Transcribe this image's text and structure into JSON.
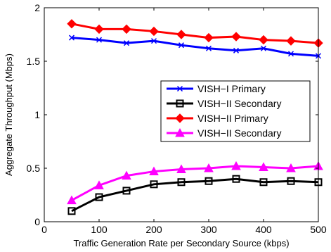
{
  "chart_data": {
    "type": "line",
    "xlabel": "Traffic Generation Rate per Secondary Source (kbps)",
    "ylabel": "Aggregate Throughput (Mbps)",
    "xlim": [
      0,
      500
    ],
    "ylim": [
      0,
      2
    ],
    "x_ticks": [
      0,
      100,
      200,
      300,
      400,
      500
    ],
    "y_ticks": [
      0,
      0.5,
      1,
      1.5,
      2
    ],
    "x_tick_labels": [
      "0",
      "100",
      "200",
      "300",
      "400",
      "500"
    ],
    "y_tick_labels": [
      "0",
      "0.5",
      "1",
      "1.5",
      "2"
    ],
    "grid": false,
    "legend_position": "right",
    "x": [
      50,
      100,
      150,
      200,
      250,
      300,
      350,
      400,
      450,
      500
    ],
    "series": [
      {
        "name": "VISH−I Primary",
        "color": "#0000ff",
        "marker": "x",
        "values": [
          1.72,
          1.7,
          1.67,
          1.69,
          1.65,
          1.62,
          1.6,
          1.62,
          1.57,
          1.55
        ]
      },
      {
        "name": "VISH−II Secondary",
        "color": "#000000",
        "marker": "square",
        "values": [
          0.1,
          0.23,
          0.29,
          0.35,
          0.37,
          0.38,
          0.4,
          0.37,
          0.38,
          0.37
        ]
      },
      {
        "name": "VISH−II Primary",
        "color": "#ff0000",
        "marker": "diamond",
        "values": [
          1.85,
          1.8,
          1.8,
          1.78,
          1.75,
          1.72,
          1.73,
          1.7,
          1.69,
          1.67
        ]
      },
      {
        "name": "VISH−II Secondary",
        "color": "#ff00ff",
        "marker": "triangle",
        "values": [
          0.2,
          0.34,
          0.43,
          0.47,
          0.49,
          0.5,
          0.52,
          0.51,
          0.5,
          0.52
        ]
      }
    ]
  }
}
